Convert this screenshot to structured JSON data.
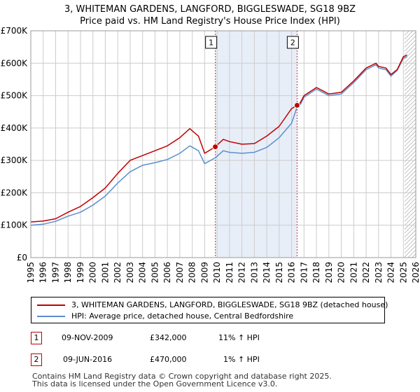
{
  "title_line1": "3, WHITEMAN GARDENS, LANGFORD, BIGGLESWADE, SG18 9BZ",
  "title_line2": "Price paid vs. HM Land Registry's House Price Index (HPI)",
  "colors": {
    "property": "#c00000",
    "hpi": "#5b8fcc",
    "shade": "#e8eef8",
    "grid": "#cccccc",
    "hatch": "#999999"
  },
  "legend": {
    "property_label": "3, WHITEMAN GARDENS, LANGFORD, BIGGLESWADE, SG18 9BZ (detached house)",
    "hpi_label": "HPI: Average price, detached house, Central Bedfordshire"
  },
  "transactions": [
    {
      "num": "1",
      "date": "09-NOV-2009",
      "price": "£342,000",
      "hpi": "11% ↑ HPI"
    },
    {
      "num": "2",
      "date": "09-JUN-2016",
      "price": "£470,000",
      "hpi": "1% ↑ HPI"
    }
  ],
  "footer_line1": "Contains HM Land Registry data © Crown copyright and database right 2025.",
  "footer_line2": "This data is licensed under the Open Government Licence v3.0.",
  "chart_data": {
    "type": "line",
    "xlabel": "",
    "ylabel": "",
    "xlim": [
      1995,
      2026
    ],
    "ylim": [
      0,
      700000
    ],
    "y_ticks": [
      0,
      100000,
      200000,
      300000,
      400000,
      500000,
      600000,
      700000
    ],
    "y_tick_labels": [
      "£0",
      "£100K",
      "£200K",
      "£300K",
      "£400K",
      "£500K",
      "£600K",
      "£700K"
    ],
    "x_ticks": [
      "1995",
      "1996",
      "1997",
      "1998",
      "1999",
      "2000",
      "2001",
      "2002",
      "2003",
      "2004",
      "2005",
      "2006",
      "2007",
      "2008",
      "2009",
      "2010",
      "2011",
      "2012",
      "2013",
      "2014",
      "2015",
      "2016",
      "2017",
      "2018",
      "2019",
      "2020",
      "2021",
      "2022",
      "2023",
      "2024",
      "2025",
      "2026"
    ],
    "shaded_region": [
      2009.86,
      2016.44
    ],
    "forecast_hatch_from": 2025.1,
    "sales": [
      {
        "label": "1",
        "x": 2009.86,
        "y": 342000
      },
      {
        "label": "2",
        "x": 2016.44,
        "y": 470000
      }
    ],
    "series": [
      {
        "name": "3, WHITEMAN GARDENS, LANGFORD, BIGGLESWADE, SG18 9BZ (detached house)",
        "x": [
          1995,
          1996,
          1997,
          1998,
          1999,
          2000,
          2001,
          2002,
          2003,
          2004,
          2005,
          2006,
          2007,
          2007.8,
          2008.5,
          2009,
          2009.86,
          2010.5,
          2011,
          2012,
          2013,
          2014,
          2015,
          2016,
          2016.44,
          2016.7,
          2017,
          2018,
          2019,
          2020,
          2021,
          2022,
          2022.8,
          2023,
          2023.6,
          2024,
          2024.5,
          2025,
          2025.3
        ],
        "y": [
          110000,
          113000,
          120000,
          140000,
          158000,
          185000,
          215000,
          260000,
          300000,
          315000,
          330000,
          345000,
          370000,
          398000,
          375000,
          322000,
          342000,
          365000,
          358000,
          350000,
          352000,
          375000,
          405000,
          460000,
          470000,
          478000,
          500000,
          525000,
          505000,
          510000,
          545000,
          585000,
          600000,
          590000,
          585000,
          565000,
          580000,
          620000,
          625000
        ]
      },
      {
        "name": "HPI: Average price, detached house, Central Bedfordshire",
        "x": [
          1995,
          1996,
          1997,
          1998,
          1999,
          2000,
          2001,
          2002,
          2003,
          2004,
          2005,
          2006,
          2007,
          2007.8,
          2008.5,
          2009,
          2009.86,
          2010.5,
          2011,
          2012,
          2013,
          2014,
          2015,
          2016,
          2016.44,
          2016.7,
          2017,
          2018,
          2019,
          2020,
          2021,
          2022,
          2022.8,
          2023,
          2023.6,
          2024,
          2024.5,
          2025,
          2025.3
        ],
        "y": [
          100000,
          103000,
          112000,
          128000,
          140000,
          162000,
          190000,
          230000,
          265000,
          285000,
          293000,
          303000,
          322000,
          345000,
          330000,
          290000,
          308000,
          330000,
          325000,
          322000,
          325000,
          340000,
          370000,
          415000,
          465000,
          472000,
          495000,
          520000,
          500000,
          505000,
          540000,
          580000,
          595000,
          585000,
          580000,
          560000,
          578000,
          615000,
          620000
        ]
      }
    ]
  }
}
